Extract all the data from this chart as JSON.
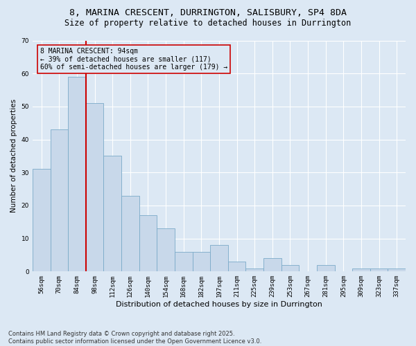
{
  "title_line1": "8, MARINA CRESCENT, DURRINGTON, SALISBURY, SP4 8DA",
  "title_line2": "Size of property relative to detached houses in Durrington",
  "xlabel": "Distribution of detached houses by size in Durrington",
  "ylabel": "Number of detached properties",
  "categories": [
    "56sqm",
    "70sqm",
    "84sqm",
    "98sqm",
    "112sqm",
    "126sqm",
    "140sqm",
    "154sqm",
    "168sqm",
    "182sqm",
    "197sqm",
    "211sqm",
    "225sqm",
    "239sqm",
    "253sqm",
    "267sqm",
    "281sqm",
    "295sqm",
    "309sqm",
    "323sqm",
    "337sqm"
  ],
  "values": [
    31,
    43,
    59,
    51,
    35,
    23,
    17,
    13,
    6,
    6,
    8,
    3,
    1,
    4,
    2,
    0,
    2,
    0,
    1,
    1,
    1
  ],
  "bar_color": "#c8d8ea",
  "bar_edge_color": "#7aaac8",
  "background_color": "#dce8f4",
  "plot_bg_color": "#dce8f4",
  "grid_color": "#ffffff",
  "vline_x": 2.5,
  "vline_color": "#cc0000",
  "annotation_text": "8 MARINA CRESCENT: 94sqm\n← 39% of detached houses are smaller (117)\n60% of semi-detached houses are larger (179) →",
  "annotation_box_edgecolor": "#cc0000",
  "ylim": [
    0,
    70
  ],
  "yticks": [
    0,
    10,
    20,
    30,
    40,
    50,
    60,
    70
  ],
  "footnote": "Contains HM Land Registry data © Crown copyright and database right 2025.\nContains public sector information licensed under the Open Government Licence v3.0.",
  "title_fontsize": 9.5,
  "subtitle_fontsize": 8.5,
  "xlabel_fontsize": 8,
  "ylabel_fontsize": 7.5,
  "tick_fontsize": 6.5,
  "annotation_fontsize": 7,
  "footnote_fontsize": 6
}
